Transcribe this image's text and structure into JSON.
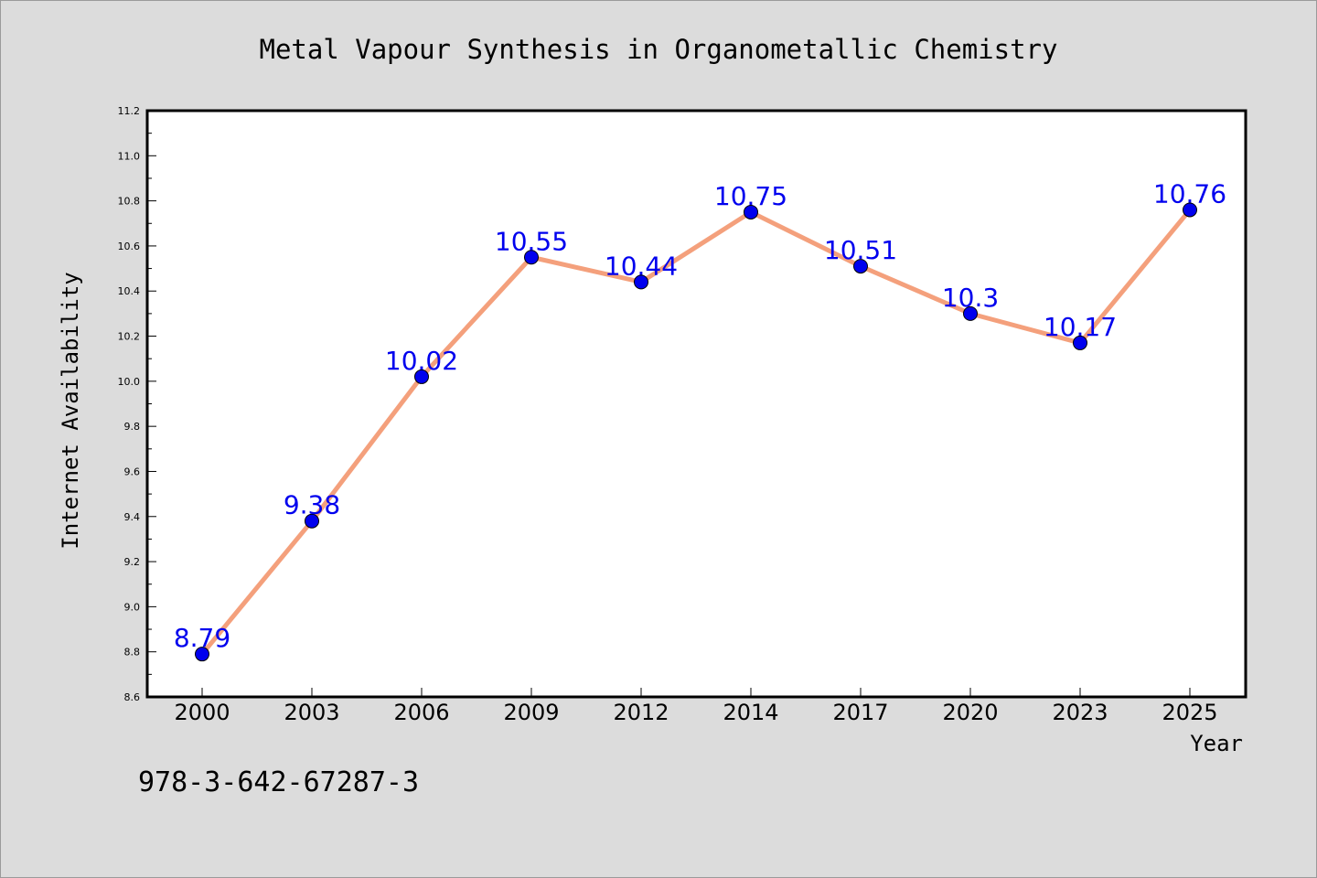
{
  "chart_data": {
    "type": "line",
    "title": "Metal Vapour Synthesis in Organometallic Chemistry",
    "xlabel": "Year",
    "ylabel": "Internet Availability",
    "categories": [
      "2000",
      "2003",
      "2006",
      "2009",
      "2012",
      "2014",
      "2017",
      "2020",
      "2023",
      "2025"
    ],
    "series": [
      {
        "values": [
          8.79,
          9.38,
          10.02,
          10.55,
          10.44,
          10.75,
          10.51,
          10.3,
          10.17,
          10.76
        ],
        "point_labels": [
          "8.79",
          "9.38",
          "10.02",
          "10.55",
          "10.44",
          "10.75",
          "10.51",
          "10.3",
          "10.17",
          "10.76"
        ]
      }
    ],
    "ylim": [
      8.6,
      11.2
    ],
    "yticks": [
      "8.6",
      "8.8",
      "9.0",
      "9.2",
      "9.4",
      "9.6",
      "9.8",
      "10.0",
      "10.2",
      "10.4",
      "10.6",
      "10.8",
      "11.0",
      "11.2"
    ],
    "grid": false,
    "line_color": "#f4a07c",
    "marker_color": "#0000ee",
    "label_color": "#0000ee"
  },
  "footer": {
    "isbn": "978-3-642-67287-3"
  }
}
